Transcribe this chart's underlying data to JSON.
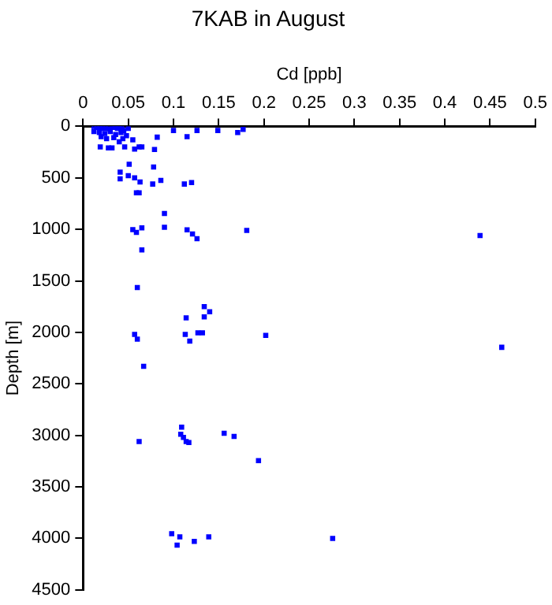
{
  "chart_data": {
    "type": "scatter",
    "title": "7KAB in August",
    "xlabel": "Cd [ppb]",
    "ylabel": "Depth [m]",
    "xlim": [
      0,
      0.5
    ],
    "xticks": [
      0,
      0.05,
      0.1,
      0.15,
      0.2,
      0.25,
      0.3,
      0.35,
      0.4,
      0.45,
      0.5
    ],
    "ylim": [
      4500,
      0
    ],
    "yticks": [
      0,
      500,
      1000,
      1500,
      2000,
      2500,
      3000,
      3500,
      4000,
      4500
    ],
    "marker": "square",
    "grid": false,
    "legend": false,
    "series": [
      {
        "color": "#0000ff",
        "x": [
          0.012,
          0.015,
          0.018,
          0.02,
          0.022,
          0.025,
          0.028,
          0.03,
          0.033,
          0.035,
          0.038,
          0.04,
          0.043,
          0.045,
          0.05,
          0.012,
          0.018,
          0.024,
          0.03,
          0.036,
          0.042,
          0.02,
          0.026,
          0.034,
          0.048,
          0.055,
          0.019,
          0.028,
          0.032,
          0.04,
          0.044,
          0.046,
          0.057,
          0.062,
          0.065,
          0.1,
          0.115,
          0.126,
          0.149,
          0.171,
          0.177,
          0.082,
          0.079,
          0.078,
          0.051,
          0.041,
          0.041,
          0.05,
          0.057,
          0.063,
          0.077,
          0.086,
          0.112,
          0.12,
          0.059,
          0.062,
          0.09,
          0.09,
          0.055,
          0.059,
          0.065,
          0.065,
          0.115,
          0.121,
          0.126,
          0.181,
          0.439,
          0.06,
          0.057,
          0.06,
          0.067,
          0.114,
          0.113,
          0.118,
          0.127,
          0.132,
          0.134,
          0.14,
          0.134,
          0.202,
          0.463,
          0.062,
          0.109,
          0.108,
          0.111,
          0.114,
          0.117,
          0.156,
          0.167,
          0.194,
          0.098,
          0.107,
          0.104,
          0.123,
          0.139,
          0.276
        ],
        "values": [
          0,
          10,
          0,
          20,
          0,
          20,
          0,
          30,
          10,
          0,
          20,
          0,
          10,
          40,
          20,
          50,
          60,
          70,
          50,
          80,
          60,
          100,
          120,
          110,
          90,
          130,
          200,
          210,
          210,
          150,
          120,
          200,
          220,
          200,
          200,
          40,
          100,
          40,
          40,
          60,
          30,
          105,
          225,
          395,
          368,
          445,
          510,
          478,
          500,
          540,
          560,
          525,
          560,
          545,
          645,
          645,
          846,
          980,
          1003,
          1030,
          985,
          1200,
          1005,
          1045,
          1090,
          1010,
          1060,
          1565,
          2020,
          2065,
          2330,
          1860,
          2020,
          2085,
          2005,
          2005,
          1750,
          1800,
          1850,
          2030,
          2145,
          3060,
          2920,
          2990,
          3020,
          3060,
          3070,
          2980,
          3010,
          3245,
          3955,
          3985,
          4065,
          4030,
          3985,
          4000
        ]
      }
    ]
  }
}
